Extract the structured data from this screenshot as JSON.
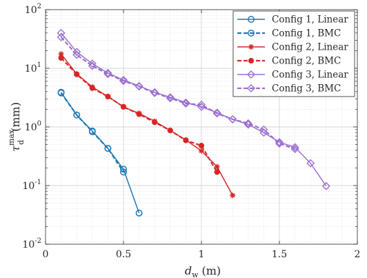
{
  "chart_data": {
    "type": "line",
    "xlabel_main": "d",
    "xlabel_sub": "w",
    "xlabel_unit": "(m)",
    "ylabel_main": "τ",
    "ylabel_sup": "max",
    "ylabel_sub": "d",
    "ylabel_unit": "(mm)",
    "xlim": [
      0,
      2
    ],
    "ylim_log10": [
      -2,
      2
    ],
    "y_scale": "log",
    "grid": true,
    "legend_position": "top-right",
    "x_ticks": [
      {
        "value": 0,
        "label": "0"
      },
      {
        "value": 0.5,
        "label": "0.5"
      },
      {
        "value": 1,
        "label": "1"
      },
      {
        "value": 1.5,
        "label": "1.5"
      },
      {
        "value": 2,
        "label": "2"
      }
    ],
    "y_ticks": [
      {
        "exp": -2,
        "base": "10",
        "power": "-2"
      },
      {
        "exp": -1,
        "base": "10",
        "power": "-1"
      },
      {
        "exp": 0,
        "base": "10",
        "power": "0"
      },
      {
        "exp": 1,
        "base": "10",
        "power": "1"
      },
      {
        "exp": 2,
        "base": "10",
        "power": "2"
      }
    ],
    "series": [
      {
        "name": "Config 1, Linear",
        "color": "#1f77b4",
        "dashed": false,
        "marker": "circle",
        "x": [
          0.1,
          0.2,
          0.3,
          0.4,
          0.5,
          0.6
        ],
        "y": [
          3.9,
          1.6,
          0.85,
          0.43,
          0.19,
          0.034
        ]
      },
      {
        "name": "Config 1, BMC",
        "color": "#1f77b4",
        "dashed": true,
        "marker": "circle",
        "x": [
          0.1,
          0.2,
          0.3,
          0.4,
          0.5
        ],
        "y": [
          3.8,
          1.6,
          0.83,
          0.43,
          0.17
        ]
      },
      {
        "name": "Config 2, Linear",
        "color": "#d62728",
        "dashed": false,
        "marker": "asterisk",
        "x": [
          0.1,
          0.2,
          0.3,
          0.4,
          0.5,
          0.6,
          0.7,
          0.8,
          0.9,
          1.0,
          1.1,
          1.2
        ],
        "y": [
          17.5,
          8.0,
          4.8,
          3.3,
          2.2,
          1.7,
          1.25,
          0.87,
          0.6,
          0.39,
          0.21,
          0.068
        ]
      },
      {
        "name": "Config 2, BMC",
        "color": "#d62728",
        "dashed": true,
        "marker": "filled-circle",
        "x": [
          0.1,
          0.2,
          0.3,
          0.4,
          0.5,
          0.6,
          0.7,
          0.8,
          0.9,
          1.0,
          1.1
        ],
        "y": [
          15.0,
          7.9,
          4.6,
          3.3,
          2.2,
          1.65,
          1.2,
          0.87,
          0.59,
          0.48,
          0.17
        ]
      },
      {
        "name": "Config 3, Linear",
        "color": "#9b6fcf",
        "dashed": false,
        "marker": "diamond",
        "x": [
          0.1,
          0.2,
          0.3,
          0.4,
          0.5,
          0.6,
          0.7,
          0.8,
          0.9,
          1.0,
          1.1,
          1.2,
          1.3,
          1.4,
          1.5,
          1.6,
          1.7,
          1.8
        ],
        "y": [
          40,
          19,
          12,
          8.3,
          6.3,
          5.0,
          3.9,
          3.2,
          2.6,
          2.2,
          1.75,
          1.35,
          1.1,
          0.8,
          0.55,
          0.45,
          0.24,
          0.098
        ]
      },
      {
        "name": "Config 3, BMC",
        "color": "#9b6fcf",
        "dashed": true,
        "marker": "diamond",
        "x": [
          0.1,
          0.2,
          0.3,
          0.4,
          0.5,
          0.6,
          0.7,
          0.8,
          0.9,
          1.0,
          1.1,
          1.2,
          1.3,
          1.4,
          1.5,
          1.6
        ],
        "y": [
          34,
          17,
          11,
          8.0,
          6.1,
          4.9,
          3.8,
          3.1,
          2.5,
          2.4,
          1.7,
          1.35,
          1.15,
          0.9,
          0.52,
          0.42
        ]
      }
    ]
  }
}
